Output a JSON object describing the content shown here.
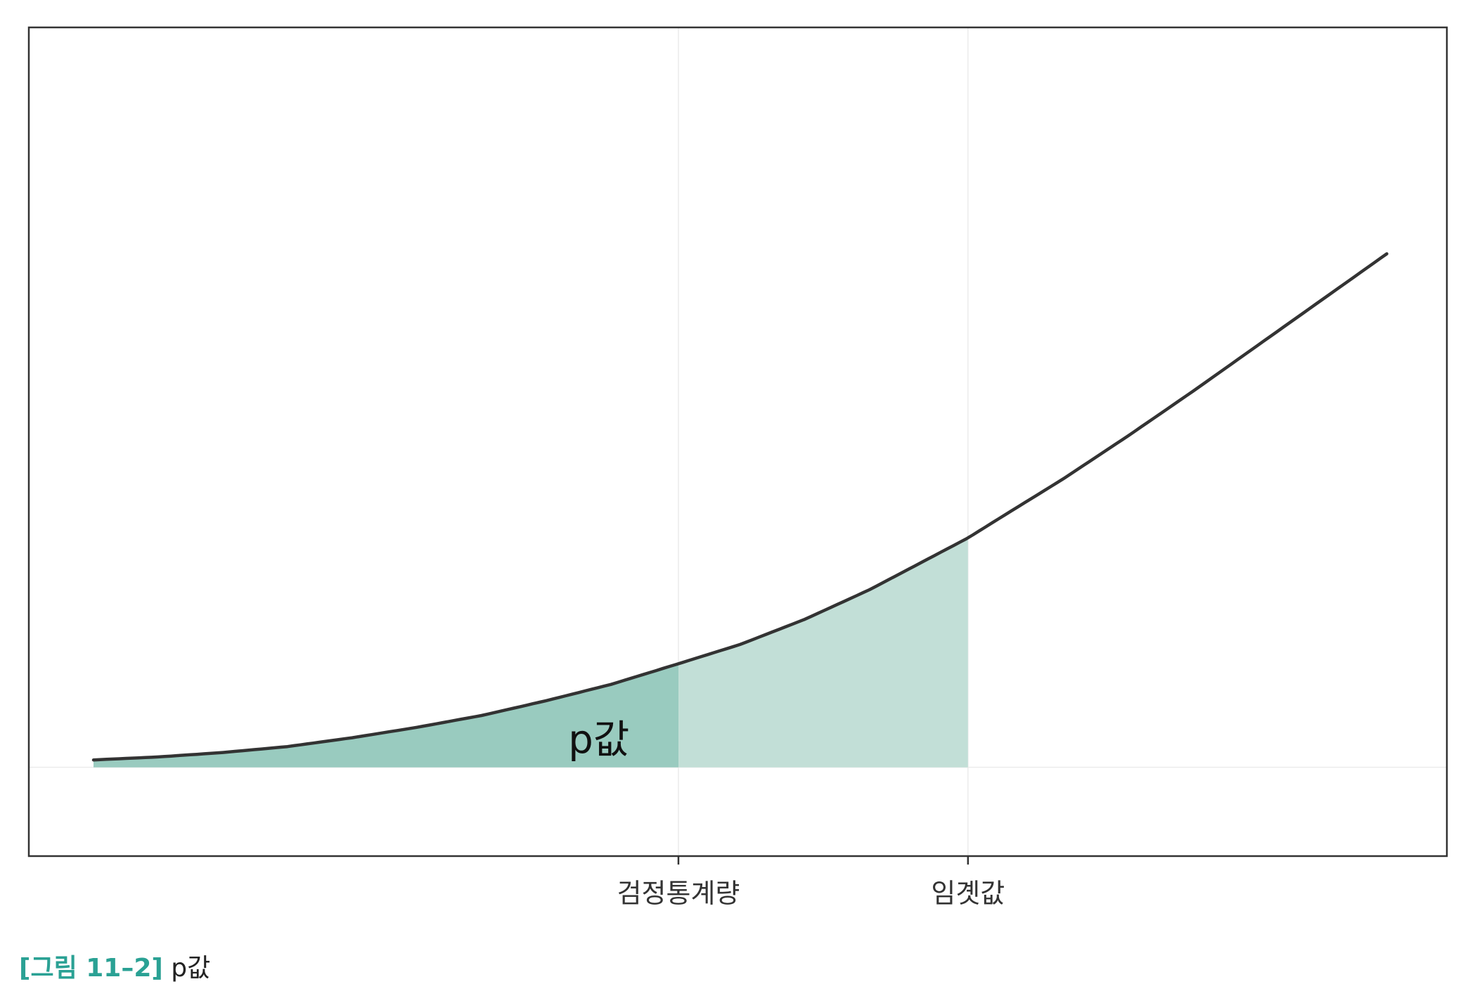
{
  "chart_data": {
    "type": "area",
    "title": "",
    "xlabel": "",
    "ylabel": "",
    "grid": true,
    "legend": "none",
    "x_ticks": [
      {
        "label": "검정통계량",
        "value": 0.4523
      },
      {
        "label": "임곗값",
        "value": 0.6762
      }
    ],
    "series": [
      {
        "x": [
          0.0,
          0.05,
          0.1,
          0.15,
          0.2,
          0.25,
          0.3,
          0.35,
          0.4,
          0.4523,
          0.5,
          0.55,
          0.6,
          0.6762,
          0.7,
          0.75,
          0.8,
          0.85,
          0.9,
          0.95,
          1.0
        ],
        "y": [
          0.05,
          0.07,
          0.1,
          0.14,
          0.2,
          0.27,
          0.35,
          0.45,
          0.56,
          0.7,
          0.83,
          1.0,
          1.2,
          1.55,
          1.68,
          1.95,
          2.24,
          2.54,
          2.85,
          3.16,
          3.47
        ]
      }
    ],
    "regions": [
      {
        "label": "p값",
        "from": 0.0,
        "to": 0.4523,
        "color": "#99cbbf"
      },
      {
        "label": "",
        "from": 0.4523,
        "to": 0.6762,
        "color": "#c2dfd7"
      }
    ],
    "xlim": [
      -0.05,
      1.0465
    ],
    "ylim": [
      -0.6,
      5.0
    ],
    "colors": {
      "line": "#333333",
      "frame": "#333333",
      "grid": "#ebebeb"
    }
  },
  "caption": {
    "label": "[그림 11–2]",
    "title": "p값",
    "label_color": "#2aa194"
  }
}
